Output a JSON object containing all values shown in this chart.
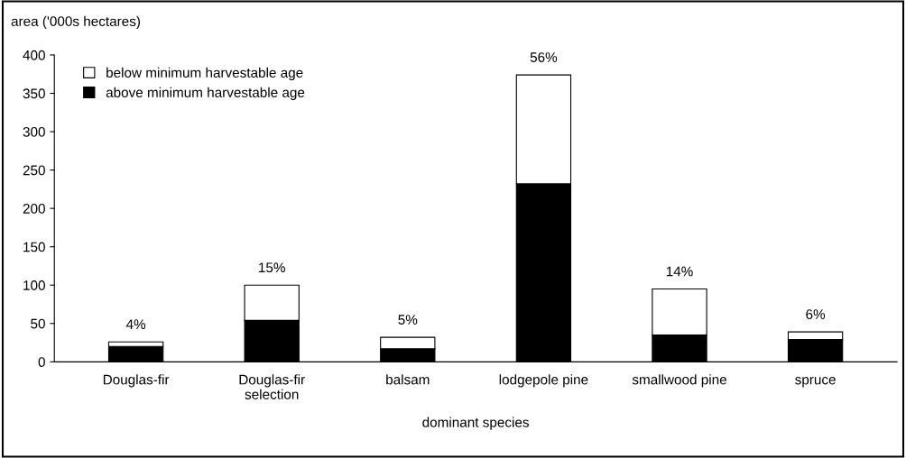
{
  "chart_data": {
    "type": "bar",
    "stacked": true,
    "ylabel": "area ('000s hectares)",
    "xlabel": "dominant species",
    "categories": [
      "Douglas-fir",
      "Douglas-fir\nselection",
      "balsam",
      "lodgepole pine",
      "smallwood pine",
      "spruce"
    ],
    "series": [
      {
        "name": "above minimum harvestable age",
        "color": "#000000",
        "values": [
          20,
          54,
          17,
          232,
          35,
          29
        ]
      },
      {
        "name": "below minimum harvestable age",
        "color": "#ffffff",
        "values": [
          6,
          46,
          15,
          142,
          60,
          10
        ]
      }
    ],
    "annotations": [
      {
        "text": "4%",
        "x": "Douglas-fir",
        "y": 26
      },
      {
        "text": "15%",
        "x": "Douglas-fir\nselection",
        "y": 100
      },
      {
        "text": "5%",
        "x": "balsam",
        "y": 32
      },
      {
        "text": "56%",
        "x": "lodgepole pine",
        "y": 374
      },
      {
        "text": "14%",
        "x": "smallwood pine",
        "y": 95
      },
      {
        "text": "6%",
        "x": "spruce",
        "y": 39
      }
    ],
    "ylim": [
      0,
      400
    ],
    "yticks": [
      0,
      50,
      100,
      150,
      200,
      250,
      300,
      350,
      400
    ],
    "grid": false,
    "legend": "top left"
  }
}
